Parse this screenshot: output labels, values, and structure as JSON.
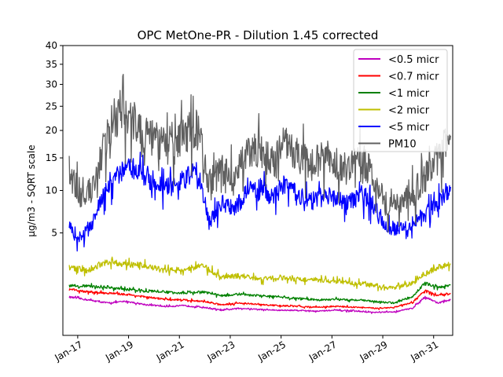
{
  "chart_data": {
    "type": "line",
    "title": "OPC MetOne-PR - Dilution 1.45 corrected",
    "ylabel": "μg/m3 - SQRT scale",
    "xlabel": "",
    "y_scale": "sqrt",
    "ylim": [
      0,
      40
    ],
    "y_ticks": [
      5,
      10,
      15,
      20,
      25,
      30,
      35,
      40
    ],
    "x_ticks": [
      "Jan-17",
      "Jan-19",
      "Jan-21",
      "Jan-23",
      "Jan-25",
      "Jan-27",
      "Jan-29",
      "Jan-31"
    ],
    "x_range": [
      "2016-06",
      "2031-10"
    ],
    "legend_position": "top-right",
    "grid": false,
    "series": [
      {
        "name": "<0.5 micr",
        "color": "#bf00bf",
        "points": [
          [
            "2016-09",
            0.7
          ],
          [
            "2017-06",
            0.6
          ],
          [
            "2018-03",
            0.5
          ],
          [
            "2018-12",
            0.55
          ],
          [
            "2019-09",
            0.45
          ],
          [
            "2020-06",
            0.4
          ],
          [
            "2021-03",
            0.42
          ],
          [
            "2021-12",
            0.38
          ],
          [
            "2022-09",
            0.3
          ],
          [
            "2023-06",
            0.35
          ],
          [
            "2024-03",
            0.32
          ],
          [
            "2024-12",
            0.3
          ],
          [
            "2025-09",
            0.3
          ],
          [
            "2026-06",
            0.28
          ],
          [
            "2027-03",
            0.3
          ],
          [
            "2027-12",
            0.28
          ],
          [
            "2028-09",
            0.25
          ],
          [
            "2029-06",
            0.26
          ],
          [
            "2030-03",
            0.35
          ],
          [
            "2030-09",
            0.7
          ],
          [
            "2031-03",
            0.5
          ],
          [
            "2031-09",
            0.6
          ]
        ]
      },
      {
        "name": "<0.7 micr",
        "color": "#ff0000",
        "points": [
          [
            "2016-09",
            1.0
          ],
          [
            "2017-06",
            0.9
          ],
          [
            "2018-03",
            0.85
          ],
          [
            "2018-12",
            0.8
          ],
          [
            "2019-09",
            0.7
          ],
          [
            "2020-06",
            0.62
          ],
          [
            "2021-03",
            0.6
          ],
          [
            "2021-12",
            0.55
          ],
          [
            "2022-09",
            0.45
          ],
          [
            "2023-06",
            0.5
          ],
          [
            "2024-03",
            0.45
          ],
          [
            "2024-12",
            0.42
          ],
          [
            "2025-09",
            0.4
          ],
          [
            "2026-06",
            0.38
          ],
          [
            "2027-03",
            0.4
          ],
          [
            "2027-12",
            0.38
          ],
          [
            "2028-09",
            0.35
          ],
          [
            "2029-06",
            0.37
          ],
          [
            "2030-03",
            0.5
          ],
          [
            "2030-09",
            0.95
          ],
          [
            "2031-03",
            0.75
          ],
          [
            "2031-09",
            0.85
          ]
        ]
      },
      {
        "name": "<1 micr",
        "color": "#008000",
        "points": [
          [
            "2016-09",
            1.2
          ],
          [
            "2017-06",
            1.15
          ],
          [
            "2018-03",
            1.1
          ],
          [
            "2018-12",
            1.0
          ],
          [
            "2019-09",
            0.95
          ],
          [
            "2020-06",
            0.9
          ],
          [
            "2021-03",
            0.85
          ],
          [
            "2021-12",
            0.9
          ],
          [
            "2022-09",
            0.75
          ],
          [
            "2023-06",
            0.8
          ],
          [
            "2024-03",
            0.75
          ],
          [
            "2024-12",
            0.7
          ],
          [
            "2025-09",
            0.65
          ],
          [
            "2026-06",
            0.6
          ],
          [
            "2027-03",
            0.62
          ],
          [
            "2027-12",
            0.6
          ],
          [
            "2028-09",
            0.55
          ],
          [
            "2029-06",
            0.5
          ],
          [
            "2030-03",
            0.7
          ],
          [
            "2030-09",
            1.3
          ],
          [
            "2031-03",
            1.1
          ],
          [
            "2031-09",
            1.2
          ]
        ]
      },
      {
        "name": "<2 micr",
        "color": "#bfbf00",
        "points": [
          [
            "2016-09",
            2.2
          ],
          [
            "2017-06",
            2.0
          ],
          [
            "2018-03",
            2.6
          ],
          [
            "2018-12",
            2.4
          ],
          [
            "2019-09",
            2.3
          ],
          [
            "2020-06",
            2.0
          ],
          [
            "2021-03",
            2.1
          ],
          [
            "2021-12",
            2.3
          ],
          [
            "2022-09",
            1.6
          ],
          [
            "2023-06",
            1.7
          ],
          [
            "2024-03",
            1.5
          ],
          [
            "2024-12",
            1.6
          ],
          [
            "2025-09",
            1.5
          ],
          [
            "2026-06",
            1.45
          ],
          [
            "2027-03",
            1.4
          ],
          [
            "2027-12",
            1.3
          ],
          [
            "2028-09",
            1.2
          ],
          [
            "2029-06",
            1.05
          ],
          [
            "2030-03",
            1.3
          ],
          [
            "2030-09",
            1.8
          ],
          [
            "2031-03",
            2.2
          ],
          [
            "2031-09",
            2.4
          ]
        ]
      },
      {
        "name": "<5 micr",
        "color": "#0000ff",
        "points": [
          [
            "2016-09",
            5.5
          ],
          [
            "2017-03",
            4.5
          ],
          [
            "2017-09",
            6.5
          ],
          [
            "2018-03",
            11.0
          ],
          [
            "2018-09",
            12.5
          ],
          [
            "2019-03",
            13.5
          ],
          [
            "2019-09",
            12.0
          ],
          [
            "2020-03",
            11.0
          ],
          [
            "2020-09",
            10.5
          ],
          [
            "2021-03",
            11.5
          ],
          [
            "2021-09",
            13.0
          ],
          [
            "2022-03",
            6.0
          ],
          [
            "2022-09",
            8.5
          ],
          [
            "2023-03",
            7.5
          ],
          [
            "2023-09",
            10.0
          ],
          [
            "2024-03",
            10.5
          ],
          [
            "2024-09",
            9.0
          ],
          [
            "2025-03",
            11.0
          ],
          [
            "2025-09",
            9.5
          ],
          [
            "2026-03",
            8.5
          ],
          [
            "2026-09",
            9.5
          ],
          [
            "2027-03",
            9.0
          ],
          [
            "2027-09",
            8.5
          ],
          [
            "2028-03",
            9.5
          ],
          [
            "2028-09",
            8.0
          ],
          [
            "2029-03",
            5.5
          ],
          [
            "2029-09",
            5.5
          ],
          [
            "2030-03",
            6.0
          ],
          [
            "2030-09",
            7.0
          ],
          [
            "2031-03",
            8.5
          ],
          [
            "2031-09",
            10.5
          ]
        ]
      },
      {
        "name": "PM10",
        "color": "#606060",
        "points": [
          [
            "2016-09",
            13.0
          ],
          [
            "2017-03",
            8.5
          ],
          [
            "2017-09",
            11.0
          ],
          [
            "2018-03",
            20.0
          ],
          [
            "2018-09",
            24.0
          ],
          [
            "2019-03",
            22.0
          ],
          [
            "2019-09",
            19.0
          ],
          [
            "2020-03",
            18.0
          ],
          [
            "2020-09",
            16.5
          ],
          [
            "2021-03",
            19.0
          ],
          [
            "2021-09",
            21.0
          ],
          [
            "2022-03",
            11.0
          ],
          [
            "2022-09",
            13.0
          ],
          [
            "2023-03",
            12.0
          ],
          [
            "2023-09",
            15.5
          ],
          [
            "2024-03",
            17.0
          ],
          [
            "2024-09",
            14.0
          ],
          [
            "2025-03",
            18.0
          ],
          [
            "2025-09",
            15.5
          ],
          [
            "2026-03",
            14.0
          ],
          [
            "2026-09",
            15.0
          ],
          [
            "2027-03",
            14.5
          ],
          [
            "2027-09",
            13.0
          ],
          [
            "2028-03",
            15.0
          ],
          [
            "2028-09",
            12.0
          ],
          [
            "2029-03",
            8.0
          ],
          [
            "2029-09",
            8.5
          ],
          [
            "2030-03",
            9.5
          ],
          [
            "2030-09",
            12.0
          ],
          [
            "2031-03",
            15.0
          ],
          [
            "2031-09",
            19.0
          ]
        ]
      }
    ]
  }
}
